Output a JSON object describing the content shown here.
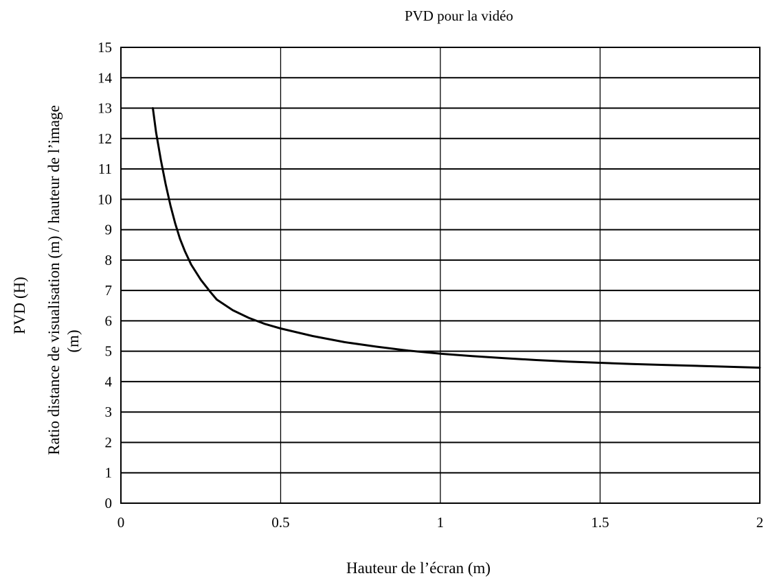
{
  "chart_data": {
    "type": "line",
    "title": "PVD pour la vidéo",
    "xlabel": "Hauteur de l’écran (m)",
    "ylabel_lines": [
      "PVD  (H)",
      "Ratio distance de visualisation (m) / hauteur de l’image",
      "(m)"
    ],
    "xlim": [
      0,
      2
    ],
    "ylim": [
      0,
      15
    ],
    "x_ticks": [
      0,
      0.5,
      1,
      1.5,
      2
    ],
    "x_tick_labels": [
      "0",
      "0.5",
      "1",
      "1.5",
      "2"
    ],
    "y_ticks": [
      0,
      1,
      2,
      3,
      4,
      5,
      6,
      7,
      8,
      9,
      10,
      11,
      12,
      13,
      14,
      15
    ],
    "y_tick_labels": [
      "0",
      "1",
      "2",
      "3",
      "4",
      "5",
      "6",
      "7",
      "8",
      "9",
      "10",
      "11",
      "12",
      "13",
      "14",
      "15"
    ],
    "grid": true,
    "series": [
      {
        "color": "#000000",
        "x": [
          0.1,
          0.11,
          0.125,
          0.14,
          0.155,
          0.17,
          0.185,
          0.2,
          0.22,
          0.25,
          0.28,
          0.3,
          0.35,
          0.4,
          0.45,
          0.5,
          0.6,
          0.7,
          0.8,
          0.9,
          1.0,
          1.1,
          1.2,
          1.3,
          1.4,
          1.5,
          1.6,
          1.7,
          1.8,
          1.9,
          2.0
        ],
        "y": [
          13.0,
          12.2,
          11.3,
          10.5,
          9.8,
          9.2,
          8.7,
          8.3,
          7.85,
          7.35,
          6.95,
          6.7,
          6.35,
          6.1,
          5.9,
          5.75,
          5.5,
          5.3,
          5.15,
          5.02,
          4.92,
          4.84,
          4.77,
          4.71,
          4.66,
          4.62,
          4.58,
          4.55,
          4.52,
          4.49,
          4.46
        ]
      }
    ]
  }
}
